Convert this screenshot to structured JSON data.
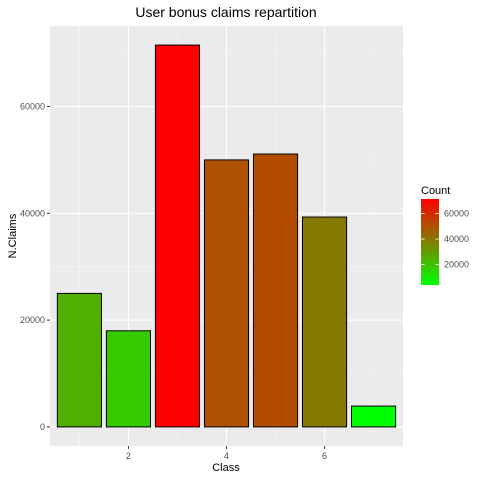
{
  "chart_data": {
    "type": "bar",
    "title": "User bonus claims repartition",
    "xlabel": "Class",
    "ylabel": "N.Claims",
    "x": [
      1,
      2,
      3,
      4,
      5,
      6,
      7
    ],
    "values": [
      25000,
      18000,
      71500,
      50000,
      51100,
      39300,
      3900
    ],
    "xticks": [
      2,
      4,
      6
    ],
    "yticks": [
      0,
      20000,
      40000,
      60000
    ],
    "xlim": [
      0.4,
      7.6
    ],
    "ylim": [
      -3575,
      75075
    ],
    "grid": true,
    "legend": {
      "title": "Count",
      "position": "right",
      "ticks": [
        20000,
        40000,
        60000
      ],
      "range": [
        3900,
        71500
      ],
      "color_low": "#00ff00",
      "color_high": "#ff0000"
    },
    "colors": {
      "panel_background": "#ebebeb",
      "grid_major": "#ffffff",
      "grid_minor": "#f5f5f5",
      "bar_outline": "#000000"
    }
  }
}
